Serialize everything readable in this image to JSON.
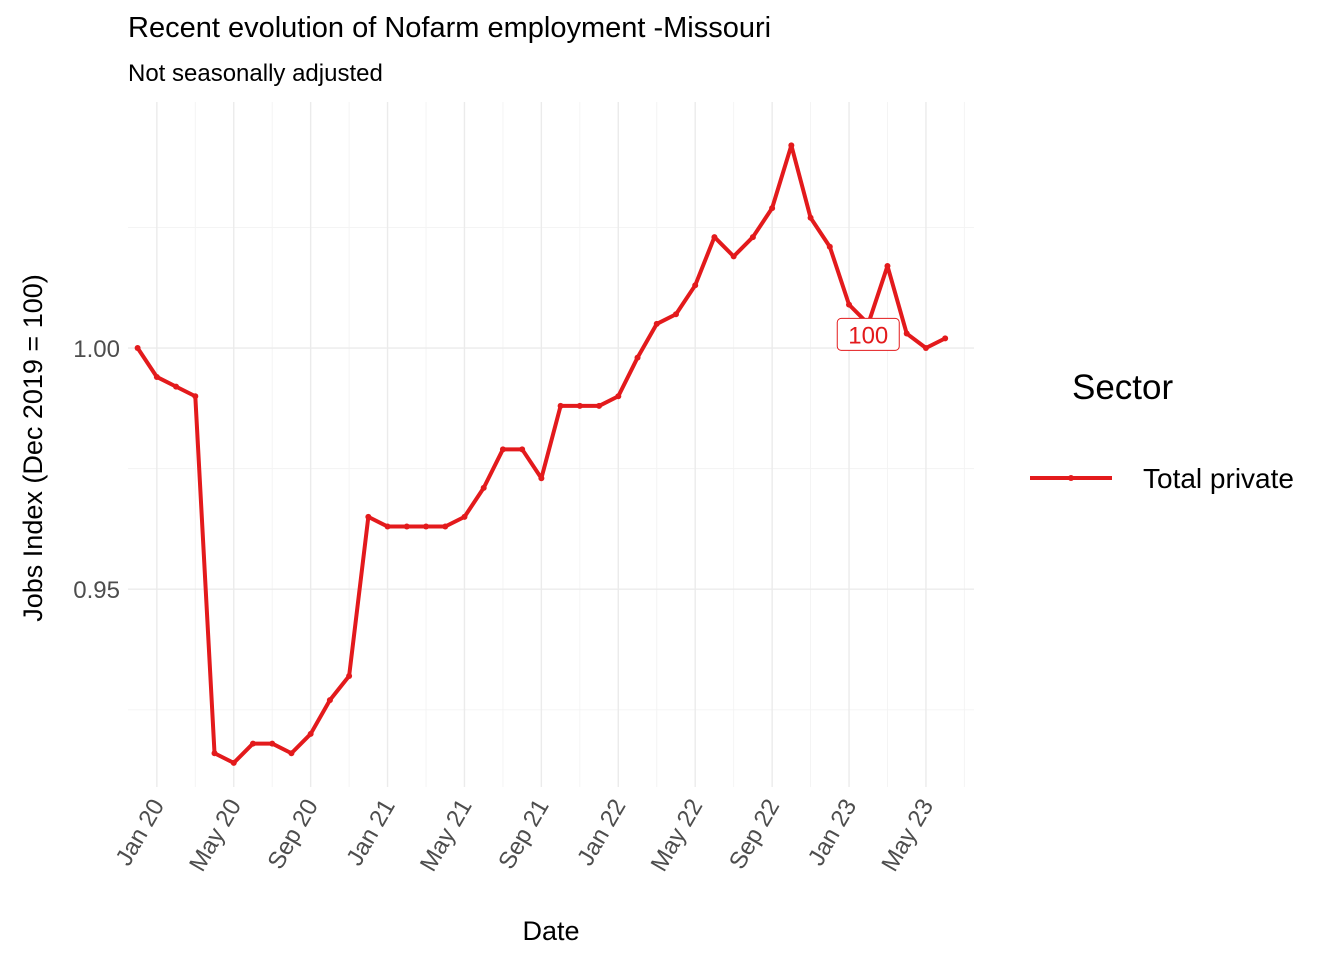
{
  "chart_data": {
    "type": "line",
    "title": "Recent evolution of Nofarm employment -Missouri",
    "subtitle": "Not seasonally adjusted",
    "xlabel": "Date",
    "ylabel": "Jobs Index (Dec 2019 = 100)",
    "x_tick_labels": [
      "Jan 20",
      "May 20",
      "Sep 20",
      "Jan 21",
      "May 21",
      "Sep 21",
      "Jan 22",
      "May 22",
      "Sep 22",
      "Jan 23",
      "May 23"
    ],
    "y_ticks": [
      0.95,
      1.0
    ],
    "y_tick_labels": [
      "0.95",
      "1.00"
    ],
    "ylim": [
      0.909,
      1.051
    ],
    "xlim": [
      "2019-11",
      "2023-07"
    ],
    "grid": true,
    "legend": {
      "title": "Sector",
      "position": "right"
    },
    "series": [
      {
        "name": "Total private",
        "color": "#e31a1c",
        "x": [
          "2019-12",
          "2020-01",
          "2020-02",
          "2020-03",
          "2020-04",
          "2020-05",
          "2020-06",
          "2020-07",
          "2020-08",
          "2020-09",
          "2020-10",
          "2020-11",
          "2020-12",
          "2021-01",
          "2021-02",
          "2021-03",
          "2021-04",
          "2021-05",
          "2021-06",
          "2021-07",
          "2021-08",
          "2021-09",
          "2021-10",
          "2021-11",
          "2021-12",
          "2022-01",
          "2022-02",
          "2022-03",
          "2022-04",
          "2022-05",
          "2022-06",
          "2022-07",
          "2022-08",
          "2022-09",
          "2022-10",
          "2022-11",
          "2022-12",
          "2023-01",
          "2023-02",
          "2023-03",
          "2023-04",
          "2023-05",
          "2023-06"
        ],
        "values": [
          1.0,
          0.994,
          0.992,
          0.99,
          0.916,
          0.914,
          0.918,
          0.918,
          0.916,
          0.92,
          0.927,
          0.932,
          0.965,
          0.963,
          0.963,
          0.963,
          0.963,
          0.965,
          0.971,
          0.979,
          0.979,
          0.973,
          0.988,
          0.988,
          0.988,
          0.99,
          0.998,
          1.005,
          1.007,
          1.013,
          1.023,
          1.019,
          1.023,
          1.029,
          1.042,
          1.027,
          1.021,
          1.009,
          1.005,
          1.017,
          1.003,
          1.0,
          1.002
        ]
      }
    ],
    "annotations": [
      {
        "text": "100",
        "x": "2023-02",
        "y": 1.002
      }
    ]
  }
}
